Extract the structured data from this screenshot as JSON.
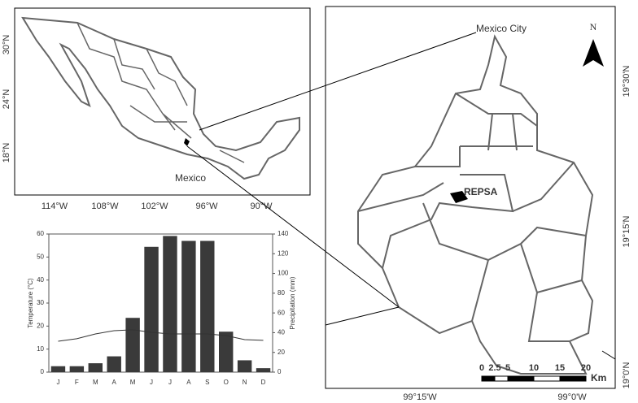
{
  "maps": {
    "overview": {
      "label": "Mexico",
      "lat_labels": [
        "30°N",
        "24°N",
        "18°N"
      ],
      "lon_labels": [
        "114°W",
        "108°W",
        "102°W",
        "96°W",
        "90°W"
      ]
    },
    "detail": {
      "city_label": "Mexico City",
      "site_label": "REPSA",
      "north": "N",
      "lat_labels": [
        "19°30'N",
        "19°15'N",
        "19°0'N"
      ],
      "lon_labels": [
        "99°15'W",
        "99°0'W"
      ],
      "scale_bar": {
        "ticks": [
          0,
          2.5,
          5,
          10,
          15,
          20
        ],
        "unit": "Km"
      }
    }
  },
  "chart_data": {
    "type": "bar",
    "categories": [
      "J",
      "F",
      "M",
      "A",
      "M",
      "J",
      "J",
      "A",
      "S",
      "O",
      "N",
      "D"
    ],
    "ylabel": "Temperature (°C)",
    "y2label": "Precipitation (mm)",
    "ylim": [
      0,
      60
    ],
    "yticks": [
      0,
      10,
      20,
      30,
      40,
      50,
      60
    ],
    "y2lim": [
      0,
      140
    ],
    "y2ticks": [
      0,
      20,
      40,
      60,
      80,
      100,
      120,
      140
    ],
    "series": [
      {
        "type": "bar",
        "axis": "y2",
        "color": "#3a3a3a",
        "values": [
          6,
          6,
          9,
          16,
          55,
          127,
          138,
          133,
          133,
          41,
          12,
          4
        ]
      },
      {
        "type": "line",
        "color": "#333333",
        "values": [
          13.4,
          14.5,
          16.6,
          18,
          18.4,
          17.3,
          16.6,
          16.6,
          16.6,
          15.9,
          14.1,
          13.8
        ]
      }
    ]
  }
}
